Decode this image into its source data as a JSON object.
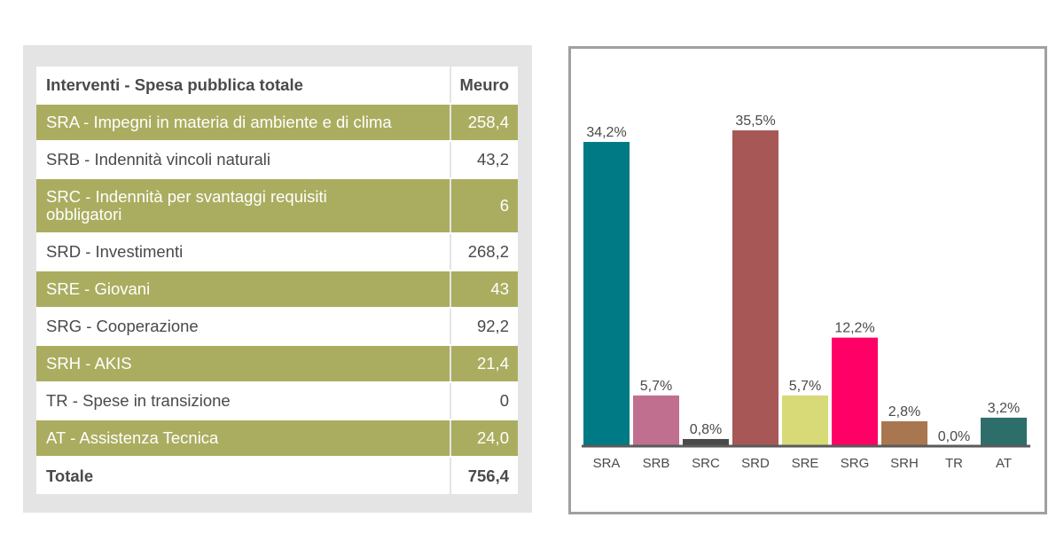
{
  "table": {
    "header": {
      "label": "Interventi - Spesa pubblica totale",
      "unit": "Meuro"
    },
    "rows": [
      {
        "label": "SRA - Impegni in materia di ambiente e di clima",
        "value": "258,4"
      },
      {
        "label": "SRB - Indennità vincoli naturali",
        "value": "43,2"
      },
      {
        "label": "SRC - Indennità per svantaggi requisiti obbligatori",
        "value": "6"
      },
      {
        "label": "SRD - Investimenti",
        "value": "268,2"
      },
      {
        "label": "SRE - Giovani",
        "value": "43"
      },
      {
        "label": "SRG - Cooperazione",
        "value": "92,2"
      },
      {
        "label": "SRH - AKIS",
        "value": "21,4"
      },
      {
        "label": "TR - Spese in transizione",
        "value": "0"
      },
      {
        "label": "AT - Assistenza Tecnica",
        "value": "24,0"
      }
    ],
    "total": {
      "label": "Totale",
      "value": "756,4"
    },
    "row_colors": {
      "odd": "#aaad5f",
      "even": "#ffffff"
    }
  },
  "chart_data": {
    "type": "bar",
    "title": "",
    "xlabel": "",
    "ylabel": "",
    "categories": [
      "SRA",
      "SRB",
      "SRC",
      "SRD",
      "SRE",
      "SRG",
      "SRH",
      "TR",
      "AT"
    ],
    "values": [
      34.2,
      5.7,
      0.8,
      35.5,
      5.7,
      12.2,
      2.8,
      0.0,
      3.2
    ],
    "labels": [
      "34,2%",
      "5,7%",
      "0,8%",
      "35,5%",
      "5,7%",
      "12,2%",
      "2,8%",
      "0,0%",
      "3,2%"
    ],
    "colors": [
      "#007a85",
      "#c0708e",
      "#4a4a4a",
      "#a85757",
      "#d7da77",
      "#ff0066",
      "#a9774f",
      "#999999",
      "#2d6e6a"
    ],
    "ylim": [
      0,
      35.5
    ],
    "grid": false,
    "legend": "none"
  }
}
